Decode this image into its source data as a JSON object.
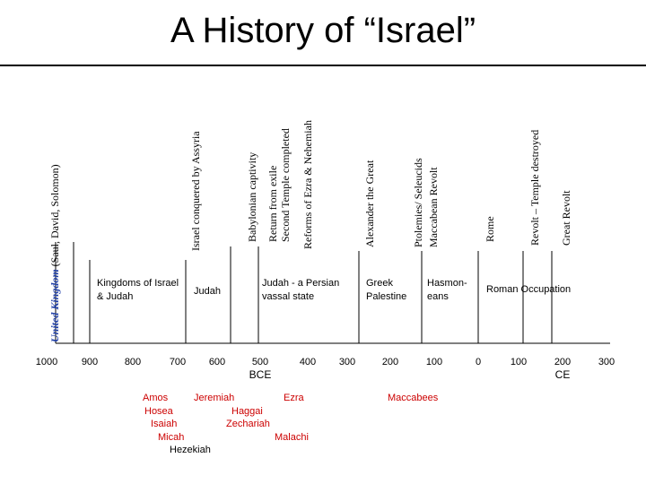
{
  "title": "A History of “Israel”",
  "colors": {
    "prophets": "#cc0000",
    "united_kingdom": "#1f3fa8"
  },
  "events": {
    "united_kingdom": "United Kingdom",
    "united_kingdom_rest": " (Saul, David, Solomon)",
    "israel_assyria": "Israel conquered by Assyria",
    "babylonian": "Babylonian captivity",
    "return_exile": "Return from exile",
    "second_temple": "Second Temple completed",
    "reforms": "Reforms of Ezra & Nehemiah",
    "alexander": "Alexander the Great",
    "ptolemies": "Ptolemies/ Seleucids",
    "maccabean": "Maccabean Revolt",
    "rome": "Rome",
    "revolt_temple": "Revolt – Temple destroyed",
    "great_revolt": "Great Revolt"
  },
  "eras": {
    "kingdoms": "Kingdoms of Israel & Judah",
    "judah": "Judah",
    "persian": "Judah - a Persian vassal state",
    "greek": "Greek Palestine",
    "hasmoneans": "Hasmon-eans",
    "roman": "Roman Occupation"
  },
  "ticks": [
    "1000",
    "900",
    "800",
    "700",
    "600",
    "500",
    "400",
    "300",
    "200",
    "100",
    "0",
    "100",
    "200",
    "300"
  ],
  "tick_sub": {
    "bce": "BCE",
    "ce": "CE"
  },
  "prophets": {
    "amos": "Amos",
    "hosea": "Hosea",
    "isaiah": "Isaiah",
    "micah": "Micah",
    "hezekiah": "Hezekiah",
    "jeremiah": "Jeremiah",
    "haggai": "Haggai",
    "zechariah": "Zechariah",
    "ezra": "Ezra",
    "malachi": "Malachi",
    "maccabees": "Maccabees"
  }
}
